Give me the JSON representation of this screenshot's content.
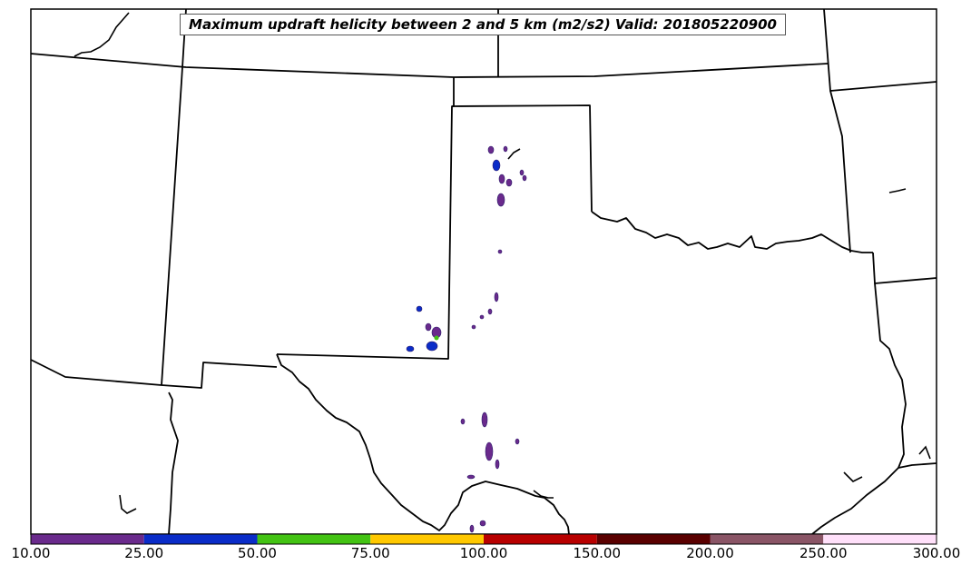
{
  "map": {
    "title": "Maximum updraft helicity between 2 and 5 km (m2/s2) Valid: 201805220900",
    "field": "updraft helicity 2-5 km",
    "units": "m2/s2",
    "valid_time": "201805220900",
    "region": "Southern Plains (Texas, Oklahoma, Kansas, New Mexico)"
  },
  "colorbar": {
    "ticks": [
      "10.00",
      "25.00",
      "50.00",
      "75.00",
      "100.00",
      "150.00",
      "200.00",
      "250.00",
      "300.00"
    ],
    "bins": [
      {
        "from": 10,
        "to": 25,
        "color": "#6a2a8c"
      },
      {
        "from": 25,
        "to": 50,
        "color": "#0a2cc8"
      },
      {
        "from": 50,
        "to": 75,
        "color": "#43c313"
      },
      {
        "from": 75,
        "to": 100,
        "color": "#ffc800"
      },
      {
        "from": 100,
        "to": 150,
        "color": "#b80000"
      },
      {
        "from": 150,
        "to": 200,
        "color": "#5a0000"
      },
      {
        "from": 200,
        "to": 250,
        "color": "#8a5566"
      },
      {
        "from": 250,
        "to": 300,
        "color": "#ffe0fa"
      }
    ]
  },
  "colors": {
    "border": "#000000",
    "cell_low": "#6a2a8c",
    "cell_mid": "#0a2cc8",
    "cell_high": "#43c313"
  }
}
